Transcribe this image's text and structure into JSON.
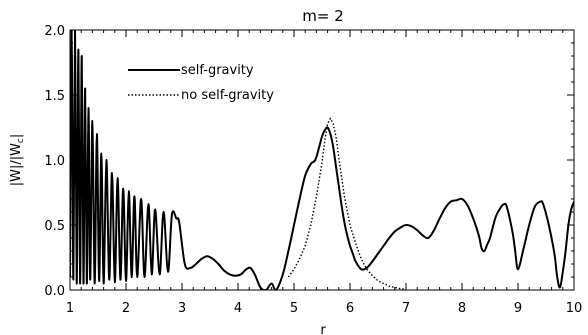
{
  "chart_data": {
    "type": "line",
    "title": "m= 2",
    "xlabel": "r",
    "ylabel_main": "|W|/|W",
    "ylabel_sub": "c",
    "ylabel_tail": "|",
    "xlim": [
      1,
      10
    ],
    "ylim": [
      0,
      2
    ],
    "xticks": [
      1,
      2,
      3,
      4,
      5,
      6,
      7,
      8,
      9,
      10
    ],
    "xtick_labels": [
      "1",
      "2",
      "3",
      "4",
      "5",
      "6",
      "7",
      "8",
      "9",
      "10"
    ],
    "yticks": [
      0,
      0.5,
      1,
      1.5,
      2
    ],
    "ytick_labels": [
      "0.0",
      "0.5",
      "1.0",
      "1.5",
      "2.0"
    ],
    "legend_position": "top-left",
    "series": [
      {
        "name": "self-gravity",
        "style": "solid",
        "x": [
          1.0,
          1.03,
          1.06,
          1.09,
          1.12,
          1.15,
          1.18,
          1.21,
          1.24,
          1.27,
          1.3,
          1.33,
          1.36,
          1.4,
          1.44,
          1.48,
          1.52,
          1.56,
          1.6,
          1.65,
          1.7,
          1.75,
          1.8,
          1.85,
          1.9,
          1.95,
          2.0,
          2.05,
          2.1,
          2.15,
          2.2,
          2.27,
          2.33,
          2.4,
          2.46,
          2.52,
          2.6,
          2.67,
          2.75,
          2.82,
          2.9,
          2.95,
          3.05,
          3.15,
          3.25,
          3.35,
          3.45,
          3.55,
          3.65,
          3.75,
          3.85,
          3.95,
          4.05,
          4.15,
          4.22,
          4.3,
          4.4,
          4.5,
          4.6,
          4.68,
          4.8,
          4.9,
          5.0,
          5.1,
          5.2,
          5.3,
          5.38,
          5.45,
          5.5,
          5.55,
          5.6,
          5.65,
          5.7,
          5.75,
          5.8,
          5.85,
          5.9,
          5.95,
          6.0,
          6.05,
          6.1,
          6.2,
          6.3,
          6.4,
          6.5,
          6.6,
          6.7,
          6.8,
          6.9,
          7.0,
          7.1,
          7.2,
          7.3,
          7.4,
          7.5,
          7.6,
          7.7,
          7.8,
          7.9,
          8.0,
          8.1,
          8.2,
          8.3,
          8.35,
          8.4,
          8.45,
          8.5,
          8.6,
          8.7,
          8.75,
          8.8,
          8.9,
          8.95,
          9.0,
          9.1,
          9.2,
          9.3,
          9.4,
          9.45,
          9.55,
          9.65,
          9.7,
          9.75,
          9.8,
          9.85,
          9.9,
          9.95,
          10.0
        ],
        "y": [
          0.1,
          2.0,
          0.08,
          2.0,
          0.05,
          1.85,
          0.05,
          1.8,
          0.05,
          1.55,
          0.05,
          1.4,
          0.08,
          1.3,
          0.05,
          1.2,
          0.07,
          1.05,
          0.05,
          1.0,
          0.08,
          0.9,
          0.06,
          0.86,
          0.08,
          0.78,
          0.07,
          0.76,
          0.1,
          0.72,
          0.1,
          0.7,
          0.1,
          0.66,
          0.12,
          0.62,
          0.12,
          0.6,
          0.14,
          0.58,
          0.55,
          0.52,
          0.2,
          0.17,
          0.2,
          0.24,
          0.26,
          0.24,
          0.2,
          0.15,
          0.12,
          0.11,
          0.12,
          0.16,
          0.17,
          0.12,
          0.02,
          0.0,
          0.05,
          0.0,
          0.12,
          0.3,
          0.5,
          0.7,
          0.88,
          0.97,
          1.0,
          1.1,
          1.18,
          1.23,
          1.25,
          1.2,
          1.1,
          0.95,
          0.8,
          0.65,
          0.52,
          0.42,
          0.34,
          0.28,
          0.22,
          0.16,
          0.17,
          0.22,
          0.28,
          0.34,
          0.4,
          0.45,
          0.48,
          0.5,
          0.49,
          0.46,
          0.42,
          0.4,
          0.46,
          0.55,
          0.63,
          0.68,
          0.69,
          0.7,
          0.65,
          0.55,
          0.42,
          0.32,
          0.3,
          0.35,
          0.4,
          0.56,
          0.64,
          0.66,
          0.64,
          0.45,
          0.3,
          0.16,
          0.32,
          0.5,
          0.64,
          0.68,
          0.66,
          0.5,
          0.28,
          0.1,
          0.02,
          0.14,
          0.3,
          0.5,
          0.62,
          0.68
        ]
      },
      {
        "name": "no self-gravity",
        "style": "dotted",
        "x": [
          4.9,
          5.0,
          5.1,
          5.2,
          5.3,
          5.4,
          5.5,
          5.55,
          5.6,
          5.65,
          5.7,
          5.75,
          5.8,
          5.9,
          6.0,
          6.1,
          6.2,
          6.3,
          6.4,
          6.5,
          6.6,
          6.7,
          6.8,
          6.9,
          7.0
        ],
        "y": [
          0.1,
          0.16,
          0.24,
          0.34,
          0.5,
          0.72,
          0.98,
          1.15,
          1.28,
          1.32,
          1.28,
          1.18,
          1.02,
          0.72,
          0.5,
          0.36,
          0.24,
          0.16,
          0.11,
          0.07,
          0.05,
          0.03,
          0.02,
          0.01,
          0.005
        ]
      }
    ]
  }
}
